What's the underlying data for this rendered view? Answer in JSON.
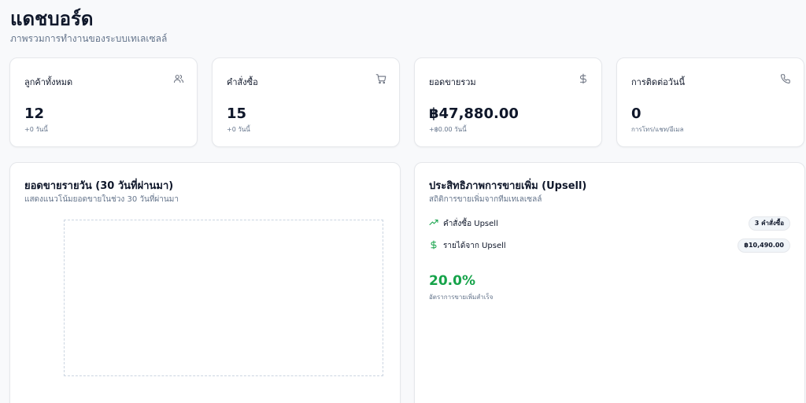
{
  "header": {
    "title": "แดชบอร์ด",
    "subtitle": "ภาพรวมการทำงานของระบบเทเลเซลล์"
  },
  "stats": [
    {
      "label": "ลูกค้าทั้งหมด",
      "value": "12",
      "sub": "+0 วันนี้",
      "icon": "users-icon"
    },
    {
      "label": "คำสั่งซื้อ",
      "value": "15",
      "sub": "+0 วันนี้",
      "icon": "shopping-cart-icon"
    },
    {
      "label": "ยอดขายรวม",
      "value": "฿47,880.00",
      "sub": "+฿0.00 วันนี้",
      "icon": "dollar-icon"
    },
    {
      "label": "การติดต่อวันนี้",
      "value": "0",
      "sub": "การโทร/แชท/อีเมล",
      "icon": "phone-icon"
    }
  ],
  "sales_panel": {
    "title": "ยอดขายรายวัน (30 วันที่ผ่านมา)",
    "subtitle": "แสดงแนวโน้มยอดขายในช่วง 30 วันที่ผ่านมา"
  },
  "upsell_panel": {
    "title": "ประสิทธิภาพการขายเพิ่ม (Upsell)",
    "subtitle": "สถิติการขายเพิ่มจากทีมเทเลเซลล์",
    "rows": [
      {
        "label": "คำสั่งซื้อ Upsell",
        "badge": "3 คำสั่งซื้อ",
        "icon": "trending-up-icon"
      },
      {
        "label": "รายได้จาก Upsell",
        "badge": "฿10,490.00",
        "icon": "dollar-icon"
      }
    ],
    "rate_value": "20.0%",
    "rate_label": "อัตราการขายเพิ่มสำเร็จ"
  },
  "colors": {
    "accent_green": "#16a34a",
    "background": "#f8f9fb",
    "card_border": "#e5e7eb",
    "muted_text": "#64748b"
  }
}
